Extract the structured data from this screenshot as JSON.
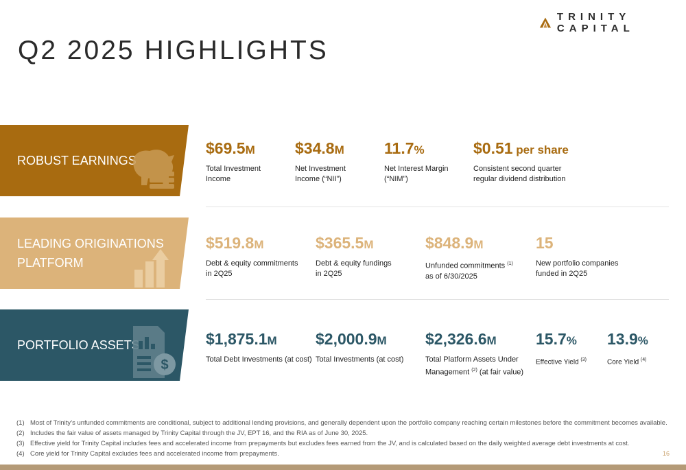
{
  "brand": {
    "name": "TRINITY CAPITAL",
    "accent": "#a86b10"
  },
  "page_title": "Q2 2025 HIGHLIGHTS",
  "sections": [
    {
      "label": "ROBUST EARNINGS",
      "color": "#a86b10",
      "icon": "piggy-bank-icon",
      "metrics": [
        {
          "value": "$69.5",
          "unit": "M",
          "desc1": "Total Investment",
          "desc2": "Income"
        },
        {
          "value": "$34.8",
          "unit": "M",
          "desc1": "Net Investment",
          "desc2": "Income (“NII”)"
        },
        {
          "value": "11.7",
          "unit": "%",
          "desc1": "Net Interest Margin",
          "desc2": "(“NIM”)"
        },
        {
          "value": "$0.51",
          "unit": " per share",
          "desc1": "Consistent second quarter",
          "desc2": "regular dividend distribution"
        }
      ]
    },
    {
      "label": "LEADING ORIGINATIONS PLATFORM",
      "color": "#dcb37a",
      "icon": "growth-chart-icon",
      "metrics": [
        {
          "value": "$519.8",
          "unit": "M",
          "desc1": "Debt & equity commitments",
          "desc2": "in 2Q25"
        },
        {
          "value": "$365.5",
          "unit": "M",
          "desc1": "Debt & equity fundings",
          "desc2": "in 2Q25"
        },
        {
          "value": "$848.9",
          "unit": "M",
          "desc1": "Unfunded commitments",
          "sup1": "(1)",
          "desc2": "as of 6/30/2025"
        },
        {
          "value": "15",
          "unit": "",
          "desc1": "New portfolio companies",
          "desc2": "funded in 2Q25"
        }
      ]
    },
    {
      "label": "PORTFOLIO ASSETS",
      "color": "#2c5766",
      "icon": "financial-document-icon",
      "metrics": [
        {
          "value": "$1,875.1",
          "unit": "M",
          "desc1": "Total Debt Investments (at cost)"
        },
        {
          "value": "$2,000.9",
          "unit": "M",
          "desc1": "Total Investments (at cost)"
        },
        {
          "value": "$2,326.6",
          "unit": "M",
          "desc1": "Total Platform Assets Under",
          "desc2a": "Management",
          "sup2": "(2)",
          "desc2b": " (at fair value)"
        },
        {
          "value": "15.7",
          "unit": "%",
          "desc1": "Effective Yield",
          "sup1": "(3)"
        },
        {
          "value": "13.9",
          "unit": "%",
          "desc1": "Core Yield",
          "sup1": "(4)"
        }
      ]
    }
  ],
  "footnotes": [
    {
      "num": "(1)",
      "text": "Most of Trinity’s unfunded commitments are conditional, subject to additional lending provisions, and generally dependent upon the portfolio company reaching certain milestones before the commitment becomes available."
    },
    {
      "num": "(2)",
      "text": "Includes the fair value of assets managed by Trinity Capital through the JV, EPT 16, and the RIA as of June 30, 2025."
    },
    {
      "num": "(3)",
      "text": "Effective yield for Trinity Capital includes fees and accelerated income from prepayments but excludes fees earned from the JV, and is calculated based on the daily weighted average debt investments at cost."
    },
    {
      "num": "(4)",
      "text": "Core yield for Trinity Capital excludes fees and accelerated income from prepayments."
    }
  ],
  "page_number": "16"
}
